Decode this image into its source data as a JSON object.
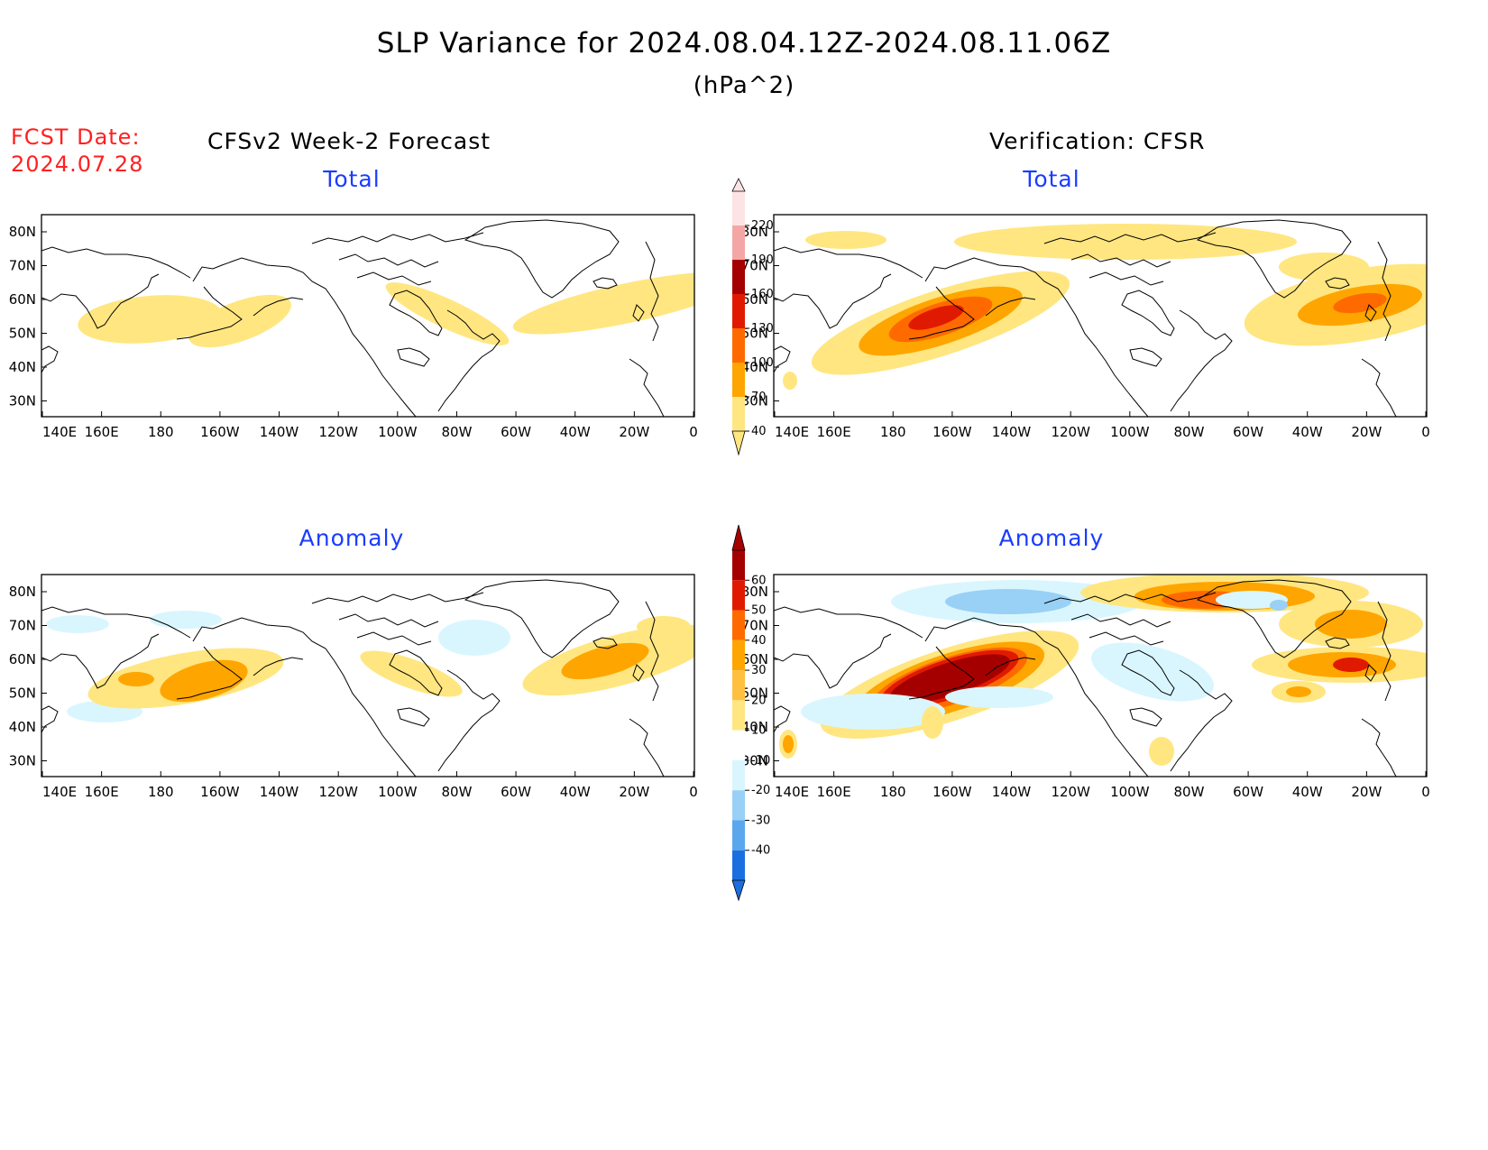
{
  "title": "SLP Variance for 2024.08.04.12Z-2024.08.11.06Z",
  "units": "(hPa^2)",
  "fcst_label": "FCST Date:",
  "fcst_date": "2024.07.28",
  "left_heading": "CFSv2 Week-2 Forecast",
  "right_heading": "Verification: CFSR",
  "panels": [
    {
      "title": "Total"
    },
    {
      "title": "Total"
    },
    {
      "title": "Anomaly"
    },
    {
      "title": "Anomaly"
    }
  ],
  "lon_labels": [
    "140E",
    "160E",
    "180",
    "160W",
    "140W",
    "120W",
    "100W",
    "80W",
    "60W",
    "40W",
    "20W",
    "0"
  ],
  "lat_labels": [
    "80N",
    "70N",
    "60N",
    "50N",
    "40N",
    "30N"
  ],
  "total_colorbar": {
    "levels": [
      "220",
      "190",
      "160",
      "130",
      "100",
      "70",
      "40"
    ],
    "colors": [
      "#fce4e4",
      "#f4a6a6",
      "#a50000",
      "#e01a00",
      "#ff6a00",
      "#ffa500",
      "#ffe680"
    ]
  },
  "anomaly_colorbar": {
    "levels": [
      "60",
      "50",
      "40",
      "30",
      "20",
      "10",
      "-10",
      "-20",
      "-30",
      "-40"
    ],
    "colors": [
      "#a50000",
      "#e01a00",
      "#ff6a00",
      "#ffa500",
      "#ffc040",
      "#ffe680",
      "#ffffff",
      "#d9f6ff",
      "#99d0f5",
      "#5aa7ee",
      "#1a6fe0"
    ]
  },
  "colors": {
    "c40": "#ffe680",
    "c70": "#ffa500",
    "c100": "#ff6a00",
    "c130": "#e01a00",
    "c160": "#a50000",
    "neg10": "#d9f6ff",
    "neg20": "#99d0f5",
    "neg30": "#5aa7ee",
    "subtitle_blue": "#1a3cff",
    "fcst_red": "#ff2020"
  }
}
